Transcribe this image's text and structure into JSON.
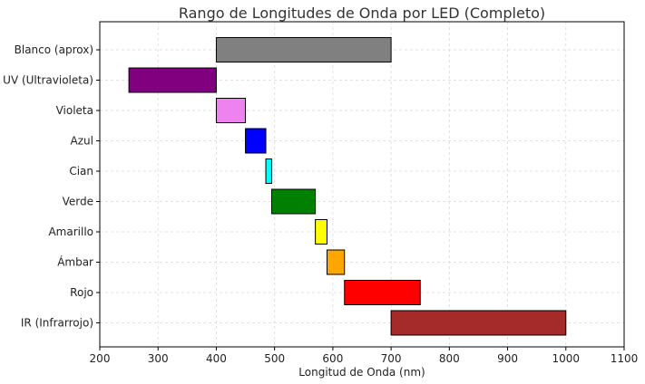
{
  "chart_data": {
    "type": "bar",
    "orientation": "horizontal-range",
    "title": "Rango de Longitudes de Onda por LED (Completo)",
    "xlabel": "Longitud de Onda (nm)",
    "ylabel": "",
    "xlim": [
      200,
      1100
    ],
    "xticks": [
      200,
      300,
      400,
      500,
      600,
      700,
      800,
      900,
      1000,
      1100
    ],
    "grid": true,
    "categories": [
      "Blanco (aprox)",
      "UV (Ultravioleta)",
      "Violeta",
      "Azul",
      "Cian",
      "Verde",
      "Amarillo",
      "Ámbar",
      "Rojo",
      "IR (Infrarrojo)"
    ],
    "ranges": [
      {
        "start": 400,
        "end": 700,
        "color": "#808080"
      },
      {
        "start": 250,
        "end": 400,
        "color": "#800080"
      },
      {
        "start": 400,
        "end": 450,
        "color": "#ee82ee"
      },
      {
        "start": 450,
        "end": 485,
        "color": "#0000ff"
      },
      {
        "start": 485,
        "end": 495,
        "color": "#00ffff"
      },
      {
        "start": 495,
        "end": 570,
        "color": "#008000"
      },
      {
        "start": 570,
        "end": 590,
        "color": "#ffff00"
      },
      {
        "start": 590,
        "end": 620,
        "color": "#ffa500"
      },
      {
        "start": 620,
        "end": 750,
        "color": "#ff0000"
      },
      {
        "start": 700,
        "end": 1000,
        "color": "#a52a2a"
      }
    ]
  }
}
